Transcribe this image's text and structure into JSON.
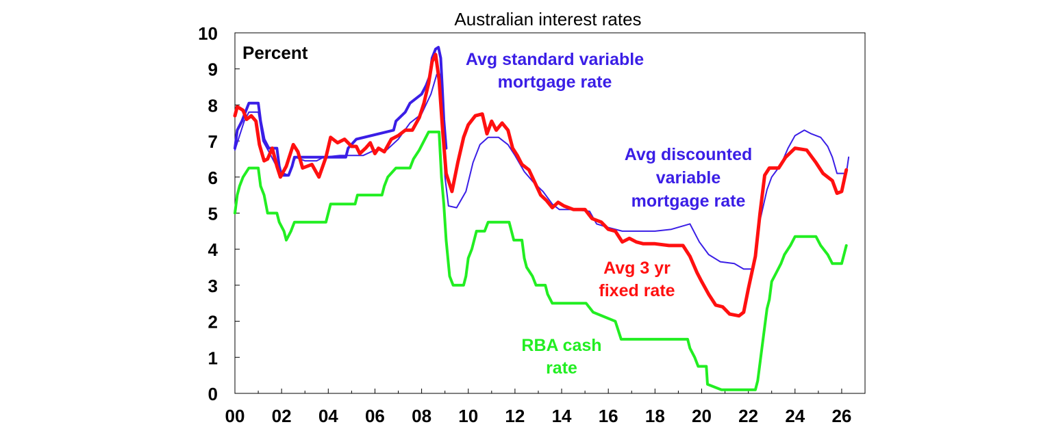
{
  "chart_data": {
    "type": "line",
    "title": "Australian interest rates",
    "unit_label": "Percent",
    "xlabel": "",
    "ylabel": "",
    "xlim": [
      2000,
      2027
    ],
    "ylim": [
      0,
      10
    ],
    "x_ticks": [
      2000,
      2002,
      2004,
      2006,
      2008,
      2010,
      2012,
      2014,
      2016,
      2018,
      2020,
      2022,
      2024,
      2026
    ],
    "x_tick_labels": [
      "00",
      "02",
      "04",
      "06",
      "08",
      "10",
      "12",
      "14",
      "16",
      "18",
      "20",
      "22",
      "24",
      "26"
    ],
    "y_ticks": [
      0,
      1,
      2,
      3,
      4,
      5,
      6,
      7,
      8,
      9,
      10
    ],
    "y_tick_labels": [
      "0",
      "1",
      "2",
      "3",
      "4",
      "5",
      "6",
      "7",
      "8",
      "9",
      "10"
    ],
    "grid": false,
    "series": [
      {
        "name": "Avg standard variable mortgage rate",
        "color": "#3a1ee6",
        "line_width": 4,
        "annotation": [
          "Avg standard variable",
          "mortgage rate"
        ],
        "points": [
          [
            2000.0,
            6.8
          ],
          [
            2000.1,
            7.3
          ],
          [
            2000.3,
            7.55
          ],
          [
            2000.45,
            7.8
          ],
          [
            2000.6,
            8.05
          ],
          [
            2001.0,
            8.05
          ],
          [
            2001.1,
            7.55
          ],
          [
            2001.25,
            7.05
          ],
          [
            2001.45,
            6.8
          ],
          [
            2001.8,
            6.8
          ],
          [
            2001.9,
            6.3
          ],
          [
            2002.0,
            6.05
          ],
          [
            2002.3,
            6.05
          ],
          [
            2002.45,
            6.3
          ],
          [
            2002.55,
            6.55
          ],
          [
            2004.75,
            6.55
          ],
          [
            2004.85,
            6.8
          ],
          [
            2005.2,
            7.05
          ],
          [
            2006.8,
            7.3
          ],
          [
            2006.9,
            7.55
          ],
          [
            2007.3,
            7.8
          ],
          [
            2007.5,
            8.05
          ],
          [
            2008.0,
            8.3
          ],
          [
            2008.2,
            8.55
          ],
          [
            2008.35,
            8.8
          ],
          [
            2008.45,
            9.3
          ],
          [
            2008.6,
            9.55
          ],
          [
            2008.72,
            9.6
          ],
          [
            2008.82,
            9.3
          ],
          [
            2008.88,
            8.55
          ],
          [
            2008.95,
            7.6
          ],
          [
            2009.05,
            6.8
          ]
        ]
      },
      {
        "name": "Avg discounted variable mortgage rate",
        "color": "#3a1ee6",
        "line_width": 2,
        "annotation": [
          "Avg discounted",
          "variable",
          "mortgage rate"
        ],
        "points": [
          [
            2000.0,
            6.75
          ],
          [
            2000.4,
            7.55
          ],
          [
            2000.6,
            7.8
          ],
          [
            2001.0,
            7.8
          ],
          [
            2001.2,
            7.0
          ],
          [
            2001.5,
            6.65
          ],
          [
            2001.9,
            6.15
          ],
          [
            2002.3,
            6.05
          ],
          [
            2002.6,
            6.55
          ],
          [
            2003.0,
            6.45
          ],
          [
            2003.5,
            6.45
          ],
          [
            2003.8,
            6.55
          ],
          [
            2004.5,
            6.6
          ],
          [
            2005.0,
            6.6
          ],
          [
            2005.5,
            6.6
          ],
          [
            2006.0,
            6.75
          ],
          [
            2006.5,
            6.75
          ],
          [
            2007.0,
            7.05
          ],
          [
            2007.5,
            7.5
          ],
          [
            2008.0,
            7.75
          ],
          [
            2008.4,
            8.3
          ],
          [
            2008.65,
            8.85
          ],
          [
            2008.8,
            8.85
          ],
          [
            2008.9,
            7.8
          ],
          [
            2009.0,
            6.0
          ],
          [
            2009.15,
            5.2
          ],
          [
            2009.5,
            5.15
          ],
          [
            2009.9,
            5.6
          ],
          [
            2010.2,
            6.4
          ],
          [
            2010.5,
            6.9
          ],
          [
            2010.85,
            7.1
          ],
          [
            2011.3,
            7.1
          ],
          [
            2011.7,
            6.9
          ],
          [
            2012.0,
            6.6
          ],
          [
            2012.4,
            6.15
          ],
          [
            2012.8,
            5.85
          ],
          [
            2013.2,
            5.6
          ],
          [
            2013.6,
            5.25
          ],
          [
            2013.9,
            5.1
          ],
          [
            2014.5,
            5.1
          ],
          [
            2015.2,
            5.05
          ],
          [
            2015.5,
            4.7
          ],
          [
            2016.0,
            4.6
          ],
          [
            2016.6,
            4.5
          ],
          [
            2017.3,
            4.5
          ],
          [
            2018.0,
            4.5
          ],
          [
            2018.7,
            4.55
          ],
          [
            2019.5,
            4.7
          ],
          [
            2019.9,
            4.2
          ],
          [
            2020.3,
            3.85
          ],
          [
            2020.8,
            3.65
          ],
          [
            2021.4,
            3.6
          ],
          [
            2021.8,
            3.45
          ],
          [
            2022.2,
            3.45
          ],
          [
            2022.5,
            4.8
          ],
          [
            2022.8,
            5.65
          ],
          [
            2023.0,
            6.0
          ],
          [
            2023.4,
            6.35
          ],
          [
            2023.7,
            6.8
          ],
          [
            2024.0,
            7.15
          ],
          [
            2024.4,
            7.3
          ],
          [
            2024.7,
            7.2
          ],
          [
            2025.1,
            7.1
          ],
          [
            2025.4,
            6.85
          ],
          [
            2025.6,
            6.55
          ],
          [
            2025.8,
            6.1
          ],
          [
            2026.2,
            6.1
          ],
          [
            2026.3,
            6.55
          ]
        ]
      },
      {
        "name": "Avg 3 yr fixed rate",
        "color": "#ff1010",
        "line_width": 5,
        "annotation": [
          "Avg 3 yr",
          "fixed rate"
        ],
        "points": [
          [
            2000.0,
            7.7
          ],
          [
            2000.1,
            7.95
          ],
          [
            2000.35,
            7.85
          ],
          [
            2000.5,
            7.6
          ],
          [
            2000.7,
            7.7
          ],
          [
            2000.9,
            7.55
          ],
          [
            2001.05,
            6.9
          ],
          [
            2001.25,
            6.45
          ],
          [
            2001.4,
            6.5
          ],
          [
            2001.6,
            6.8
          ],
          [
            2001.8,
            6.3
          ],
          [
            2001.95,
            6.0
          ],
          [
            2002.2,
            6.3
          ],
          [
            2002.5,
            6.9
          ],
          [
            2002.7,
            6.7
          ],
          [
            2002.9,
            6.25
          ],
          [
            2003.3,
            6.35
          ],
          [
            2003.6,
            6.0
          ],
          [
            2003.9,
            6.55
          ],
          [
            2004.1,
            7.1
          ],
          [
            2004.4,
            6.95
          ],
          [
            2004.7,
            7.05
          ],
          [
            2005.0,
            6.85
          ],
          [
            2005.2,
            6.85
          ],
          [
            2005.35,
            6.65
          ],
          [
            2005.6,
            6.8
          ],
          [
            2005.8,
            6.95
          ],
          [
            2006.0,
            6.65
          ],
          [
            2006.15,
            6.8
          ],
          [
            2006.4,
            6.7
          ],
          [
            2006.7,
            7.05
          ],
          [
            2007.0,
            7.15
          ],
          [
            2007.3,
            7.3
          ],
          [
            2007.6,
            7.3
          ],
          [
            2007.9,
            7.65
          ],
          [
            2008.1,
            8.05
          ],
          [
            2008.3,
            8.6
          ],
          [
            2008.45,
            9.2
          ],
          [
            2008.6,
            9.4
          ],
          [
            2008.75,
            8.7
          ],
          [
            2008.9,
            7.3
          ],
          [
            2009.05,
            6.1
          ],
          [
            2009.3,
            5.6
          ],
          [
            2009.55,
            6.4
          ],
          [
            2009.8,
            7.1
          ],
          [
            2010.0,
            7.45
          ],
          [
            2010.3,
            7.7
          ],
          [
            2010.6,
            7.75
          ],
          [
            2010.8,
            7.2
          ],
          [
            2011.0,
            7.55
          ],
          [
            2011.2,
            7.3
          ],
          [
            2011.45,
            7.5
          ],
          [
            2011.7,
            7.3
          ],
          [
            2011.9,
            6.8
          ],
          [
            2012.1,
            6.6
          ],
          [
            2012.3,
            6.35
          ],
          [
            2012.6,
            6.2
          ],
          [
            2012.85,
            5.85
          ],
          [
            2013.1,
            5.5
          ],
          [
            2013.35,
            5.35
          ],
          [
            2013.6,
            5.15
          ],
          [
            2013.85,
            5.3
          ],
          [
            2014.1,
            5.2
          ],
          [
            2014.5,
            5.1
          ],
          [
            2015.0,
            5.1
          ],
          [
            2015.3,
            4.85
          ],
          [
            2015.7,
            4.75
          ],
          [
            2016.0,
            4.55
          ],
          [
            2016.3,
            4.5
          ],
          [
            2016.6,
            4.2
          ],
          [
            2016.9,
            4.3
          ],
          [
            2017.2,
            4.2
          ],
          [
            2017.5,
            4.15
          ],
          [
            2018.0,
            4.15
          ],
          [
            2018.6,
            4.1
          ],
          [
            2019.2,
            4.1
          ],
          [
            2019.5,
            3.8
          ],
          [
            2019.8,
            3.35
          ],
          [
            2020.0,
            3.1
          ],
          [
            2020.3,
            2.75
          ],
          [
            2020.6,
            2.45
          ],
          [
            2020.9,
            2.4
          ],
          [
            2021.2,
            2.2
          ],
          [
            2021.6,
            2.15
          ],
          [
            2021.8,
            2.25
          ],
          [
            2022.0,
            2.9
          ],
          [
            2022.3,
            3.8
          ],
          [
            2022.5,
            5.0
          ],
          [
            2022.7,
            6.05
          ],
          [
            2022.9,
            6.25
          ],
          [
            2023.3,
            6.25
          ],
          [
            2023.6,
            6.55
          ],
          [
            2024.0,
            6.8
          ],
          [
            2024.5,
            6.75
          ],
          [
            2024.9,
            6.4
          ],
          [
            2025.2,
            6.1
          ],
          [
            2025.6,
            5.9
          ],
          [
            2025.8,
            5.55
          ],
          [
            2026.0,
            5.6
          ],
          [
            2026.2,
            6.2
          ]
        ]
      },
      {
        "name": "RBA cash rate",
        "color": "#22ee22",
        "line_width": 4,
        "annotation": [
          "RBA cash",
          "rate"
        ],
        "points": [
          [
            2000.0,
            5.0
          ],
          [
            2000.1,
            5.5
          ],
          [
            2000.2,
            5.75
          ],
          [
            2000.35,
            6.0
          ],
          [
            2000.6,
            6.25
          ],
          [
            2001.0,
            6.25
          ],
          [
            2001.1,
            5.75
          ],
          [
            2001.25,
            5.5
          ],
          [
            2001.4,
            5.0
          ],
          [
            2001.8,
            5.0
          ],
          [
            2001.9,
            4.75
          ],
          [
            2002.1,
            4.5
          ],
          [
            2002.2,
            4.25
          ],
          [
            2002.4,
            4.5
          ],
          [
            2002.55,
            4.75
          ],
          [
            2003.9,
            4.75
          ],
          [
            2004.0,
            5.0
          ],
          [
            2004.1,
            5.25
          ],
          [
            2005.15,
            5.25
          ],
          [
            2005.25,
            5.5
          ],
          [
            2006.3,
            5.5
          ],
          [
            2006.4,
            5.75
          ],
          [
            2006.55,
            6.0
          ],
          [
            2006.9,
            6.25
          ],
          [
            2007.5,
            6.25
          ],
          [
            2007.65,
            6.5
          ],
          [
            2007.9,
            6.75
          ],
          [
            2008.1,
            7.0
          ],
          [
            2008.3,
            7.25
          ],
          [
            2008.75,
            7.25
          ],
          [
            2008.85,
            6.0
          ],
          [
            2008.95,
            5.25
          ],
          [
            2009.05,
            4.25
          ],
          [
            2009.2,
            3.25
          ],
          [
            2009.35,
            3.0
          ],
          [
            2009.8,
            3.0
          ],
          [
            2009.9,
            3.25
          ],
          [
            2010.0,
            3.75
          ],
          [
            2010.15,
            4.0
          ],
          [
            2010.35,
            4.5
          ],
          [
            2010.7,
            4.5
          ],
          [
            2010.85,
            4.75
          ],
          [
            2011.75,
            4.75
          ],
          [
            2011.85,
            4.5
          ],
          [
            2011.95,
            4.25
          ],
          [
            2012.3,
            4.25
          ],
          [
            2012.4,
            3.75
          ],
          [
            2012.5,
            3.5
          ],
          [
            2012.75,
            3.25
          ],
          [
            2012.9,
            3.0
          ],
          [
            2013.3,
            3.0
          ],
          [
            2013.4,
            2.75
          ],
          [
            2013.6,
            2.5
          ],
          [
            2015.05,
            2.5
          ],
          [
            2015.35,
            2.25
          ],
          [
            2016.3,
            2.0
          ],
          [
            2016.55,
            1.5
          ],
          [
            2019.4,
            1.5
          ],
          [
            2019.5,
            1.25
          ],
          [
            2019.7,
            1.0
          ],
          [
            2019.85,
            0.75
          ],
          [
            2020.2,
            0.75
          ],
          [
            2020.25,
            0.25
          ],
          [
            2020.85,
            0.1
          ],
          [
            2022.3,
            0.1
          ],
          [
            2022.4,
            0.35
          ],
          [
            2022.5,
            0.85
          ],
          [
            2022.6,
            1.35
          ],
          [
            2022.7,
            1.85
          ],
          [
            2022.8,
            2.35
          ],
          [
            2022.9,
            2.6
          ],
          [
            2023.0,
            3.1
          ],
          [
            2023.2,
            3.35
          ],
          [
            2023.4,
            3.6
          ],
          [
            2023.55,
            3.85
          ],
          [
            2023.8,
            4.1
          ],
          [
            2024.0,
            4.35
          ],
          [
            2024.9,
            4.35
          ],
          [
            2025.1,
            4.1
          ],
          [
            2025.4,
            3.85
          ],
          [
            2025.6,
            3.6
          ],
          [
            2026.0,
            3.6
          ],
          [
            2026.1,
            3.85
          ],
          [
            2026.2,
            4.1
          ]
        ]
      }
    ]
  }
}
